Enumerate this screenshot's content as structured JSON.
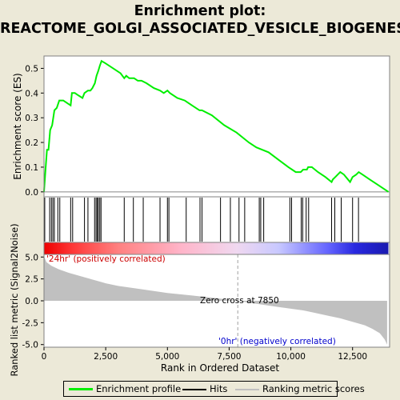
{
  "title_lines": [
    "Enrichment plot:",
    "REACTOME_GOLGI_ASSOCIATED_VESICLE_BIOGENESIS"
  ],
  "chart_data": [
    {
      "type": "line",
      "name": "enrichment-profile",
      "ylabel": "Enrichment score (ES)",
      "xlim": [
        0,
        14000
      ],
      "ylim": [
        -0.02,
        0.55
      ],
      "yticks": [
        0.0,
        0.1,
        0.2,
        0.3,
        0.4,
        0.5
      ],
      "ytick_labels": [
        "0.0",
        "0.1",
        "0.2",
        "0.3",
        "0.4",
        "0.5"
      ],
      "grid": false,
      "line_color": "#00ee00",
      "x": [
        0,
        60,
        120,
        180,
        250,
        330,
        420,
        520,
        620,
        780,
        930,
        1080,
        1130,
        1250,
        1400,
        1560,
        1640,
        1780,
        1880,
        1960,
        2060,
        2130,
        2200,
        2260,
        2330,
        2500,
        2800,
        3100,
        3250,
        3330,
        3450,
        3650,
        3800,
        3950,
        4150,
        4450,
        4700,
        4850,
        5000,
        5100,
        5400,
        5700,
        6000,
        6300,
        6400,
        6800,
        7300,
        7800,
        8300,
        8600,
        8850,
        9100,
        9500,
        9900,
        10050,
        10200,
        10400,
        10500,
        10650,
        10700,
        10850,
        11100,
        11400,
        11650,
        11700,
        11800,
        11900,
        12000,
        12150,
        12400,
        12500,
        12650,
        12750,
        12900,
        13200,
        13500,
        13800,
        13950
      ],
      "y": [
        0.0,
        0.09,
        0.17,
        0.17,
        0.25,
        0.27,
        0.33,
        0.34,
        0.37,
        0.37,
        0.36,
        0.35,
        0.4,
        0.4,
        0.39,
        0.38,
        0.4,
        0.41,
        0.41,
        0.42,
        0.44,
        0.47,
        0.49,
        0.51,
        0.53,
        0.52,
        0.5,
        0.48,
        0.46,
        0.47,
        0.46,
        0.46,
        0.45,
        0.45,
        0.44,
        0.42,
        0.41,
        0.4,
        0.41,
        0.4,
        0.38,
        0.37,
        0.35,
        0.33,
        0.33,
        0.31,
        0.27,
        0.24,
        0.2,
        0.18,
        0.17,
        0.16,
        0.13,
        0.1,
        0.09,
        0.08,
        0.08,
        0.09,
        0.09,
        0.1,
        0.1,
        0.08,
        0.06,
        0.04,
        0.05,
        0.06,
        0.07,
        0.08,
        0.07,
        0.04,
        0.06,
        0.07,
        0.08,
        0.07,
        0.05,
        0.03,
        0.01,
        0.0
      ]
    },
    {
      "type": "hits",
      "name": "hits",
      "x": [
        30,
        230,
        300,
        360,
        420,
        560,
        640,
        1080,
        1160,
        1640,
        1780,
        2050,
        2110,
        2160,
        2200,
        2260,
        2310,
        3250,
        3620,
        4020,
        4700,
        5000,
        5060,
        5760,
        6320,
        6400,
        7150,
        7550,
        7900,
        8130,
        8720,
        8780,
        8900,
        9960,
        10030,
        10420,
        10480,
        10620,
        10720,
        11650,
        11780,
        12040,
        12500,
        12740
      ]
    },
    {
      "type": "area",
      "name": "ranked-list-metric",
      "ylabel": "Ranked list metric (Signal2Noise)",
      "xlabel": "Rank in Ordered Dataset",
      "xlim": [
        0,
        14000
      ],
      "ylim": [
        -5.3,
        5.3
      ],
      "yticks": [
        5.0,
        2.5,
        0.0,
        -2.5,
        -5.0
      ],
      "ytick_labels": [
        "5.0",
        "2.5",
        "0.0",
        "-2.5",
        "-5.0"
      ],
      "xticks": [
        0,
        2500,
        5000,
        7500,
        10000,
        12500
      ],
      "xtick_labels": [
        "0",
        "2,500",
        "5,000",
        "7,500",
        "10,000",
        "12,500"
      ],
      "fill_color": "#c0c0c0",
      "x": [
        0,
        100,
        300,
        600,
        1000,
        1500,
        2000,
        2500,
        3000,
        4000,
        5000,
        6000,
        7000,
        7850,
        8500,
        9500,
        10500,
        11000,
        11500,
        12000,
        12500,
        13000,
        13300,
        13600,
        13800,
        13900
      ],
      "y": [
        5.1,
        4.4,
        4.0,
        3.6,
        3.2,
        2.8,
        2.4,
        2.0,
        1.7,
        1.3,
        0.9,
        0.6,
        0.3,
        0.0,
        -0.3,
        -0.7,
        -1.1,
        -1.4,
        -1.7,
        -2.0,
        -2.4,
        -2.8,
        -3.2,
        -3.7,
        -4.4,
        -5.0
      ]
    }
  ],
  "annotations": {
    "positive_label": "'24hr' (positively correlated)",
    "negative_label": "'0hr' (negatively correlated)",
    "zero_cross_label": "Zero cross at 7850",
    "zero_cross_rank": 7850,
    "positive_color": "#cc0000",
    "negative_color": "#0000cc"
  },
  "heatbar": {
    "stops": [
      {
        "x": 0,
        "color": "#ee0000"
      },
      {
        "x": 1200,
        "color": "#ff3a3a"
      },
      {
        "x": 3000,
        "color": "#ff8080"
      },
      {
        "x": 5500,
        "color": "#ffb4c8"
      },
      {
        "x": 7800,
        "color": "#f0d8f0"
      },
      {
        "x": 9500,
        "color": "#c8c8ff"
      },
      {
        "x": 11500,
        "color": "#6464ff"
      },
      {
        "x": 12600,
        "color": "#2828e0"
      },
      {
        "x": 13950,
        "color": "#1a1ab0"
      }
    ]
  },
  "legend": {
    "items": [
      {
        "label": "Enrichment profile",
        "color": "#00ee00"
      },
      {
        "label": "Hits",
        "color": "#000000"
      },
      {
        "label": "Ranking metric scores",
        "color": "#c0c0c0"
      }
    ]
  }
}
